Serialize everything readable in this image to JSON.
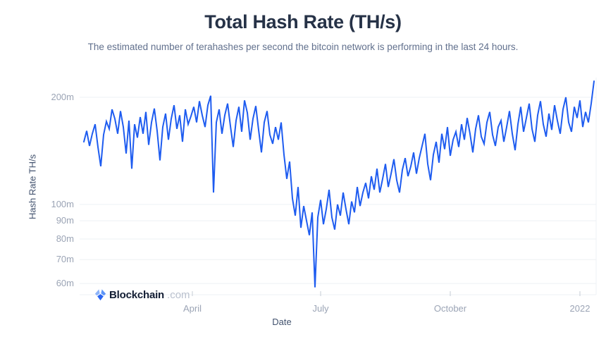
{
  "page": {
    "title": "Total Hash Rate (TH/s)",
    "subtitle": "The estimated number of terahashes per second the bitcoin network is performing in the last 24 hours."
  },
  "branding": {
    "logo_text": "Blockchain",
    "logo_suffix": ".com",
    "logo_icon": "blockchain-logo-icon"
  },
  "chart_data": {
    "type": "line",
    "title": "Total Hash Rate (TH/s)",
    "xlabel": "Date",
    "ylabel": "Hash Rate TH/s",
    "yscale": "log",
    "ylim": [
      55.8,
      227.2
    ],
    "grid": true,
    "legend": "none",
    "line_color": "#1e5cf0",
    "grid_color": "#eef0f4",
    "tick_mark_color": "#c6ccd6",
    "tick_text_color": "#9ba4b5",
    "y_ticks": [
      {
        "value": 60,
        "label": "60m"
      },
      {
        "value": 70,
        "label": "70m"
      },
      {
        "value": 80,
        "label": "80m"
      },
      {
        "value": 90,
        "label": "90m"
      },
      {
        "value": 100,
        "label": "100m"
      },
      {
        "value": 200,
        "label": "200m"
      }
    ],
    "x_ticks": [
      {
        "label": "April",
        "day": 77
      },
      {
        "label": "July",
        "day": 168
      },
      {
        "label": "October",
        "day": 260
      },
      {
        "label": "2022",
        "day": 352
      }
    ],
    "series": [
      {
        "name": "Total Hash Rate",
        "unit": "m TH/s",
        "sample_interval_days": 2,
        "values": [
          150,
          161,
          146,
          158,
          168,
          145,
          128,
          157,
          171,
          163,
          185,
          174,
          158,
          183,
          165,
          139,
          172,
          126,
          168,
          154,
          176,
          158,
          182,
          147,
          170,
          186,
          161,
          133,
          165,
          180,
          152,
          174,
          190,
          163,
          178,
          150,
          185,
          168,
          177,
          188,
          170,
          195,
          178,
          165,
          190,
          202,
          108,
          170,
          185,
          158,
          178,
          192,
          166,
          145,
          172,
          188,
          160,
          196,
          181,
          152,
          174,
          189,
          162,
          140,
          170,
          183,
          157,
          148,
          165,
          152,
          170,
          138,
          118,
          132,
          104,
          93,
          112,
          86,
          99,
          90,
          82,
          95,
          58.5,
          92,
          103,
          88,
          97,
          110,
          92,
          85,
          100,
          93,
          108,
          97,
          88,
          102,
          95,
          112,
          99,
          108,
          115,
          104,
          120,
          110,
          126,
          108,
          118,
          130,
          112,
          122,
          134,
          117,
          108,
          125,
          135,
          120,
          128,
          140,
          122,
          135,
          146,
          158,
          130,
          117,
          138,
          150,
          131,
          158,
          143,
          165,
          137,
          152,
          160,
          145,
          168,
          152,
          175,
          158,
          140,
          163,
          178,
          155,
          148,
          170,
          182,
          157,
          146,
          165,
          172,
          150,
          165,
          183,
          158,
          142,
          168,
          188,
          160,
          175,
          192,
          163,
          150,
          178,
          195,
          168,
          155,
          180,
          162,
          190,
          172,
          158,
          185,
          200,
          170,
          160,
          188,
          175,
          196,
          165,
          182,
          170,
          192,
          222
        ]
      }
    ]
  }
}
